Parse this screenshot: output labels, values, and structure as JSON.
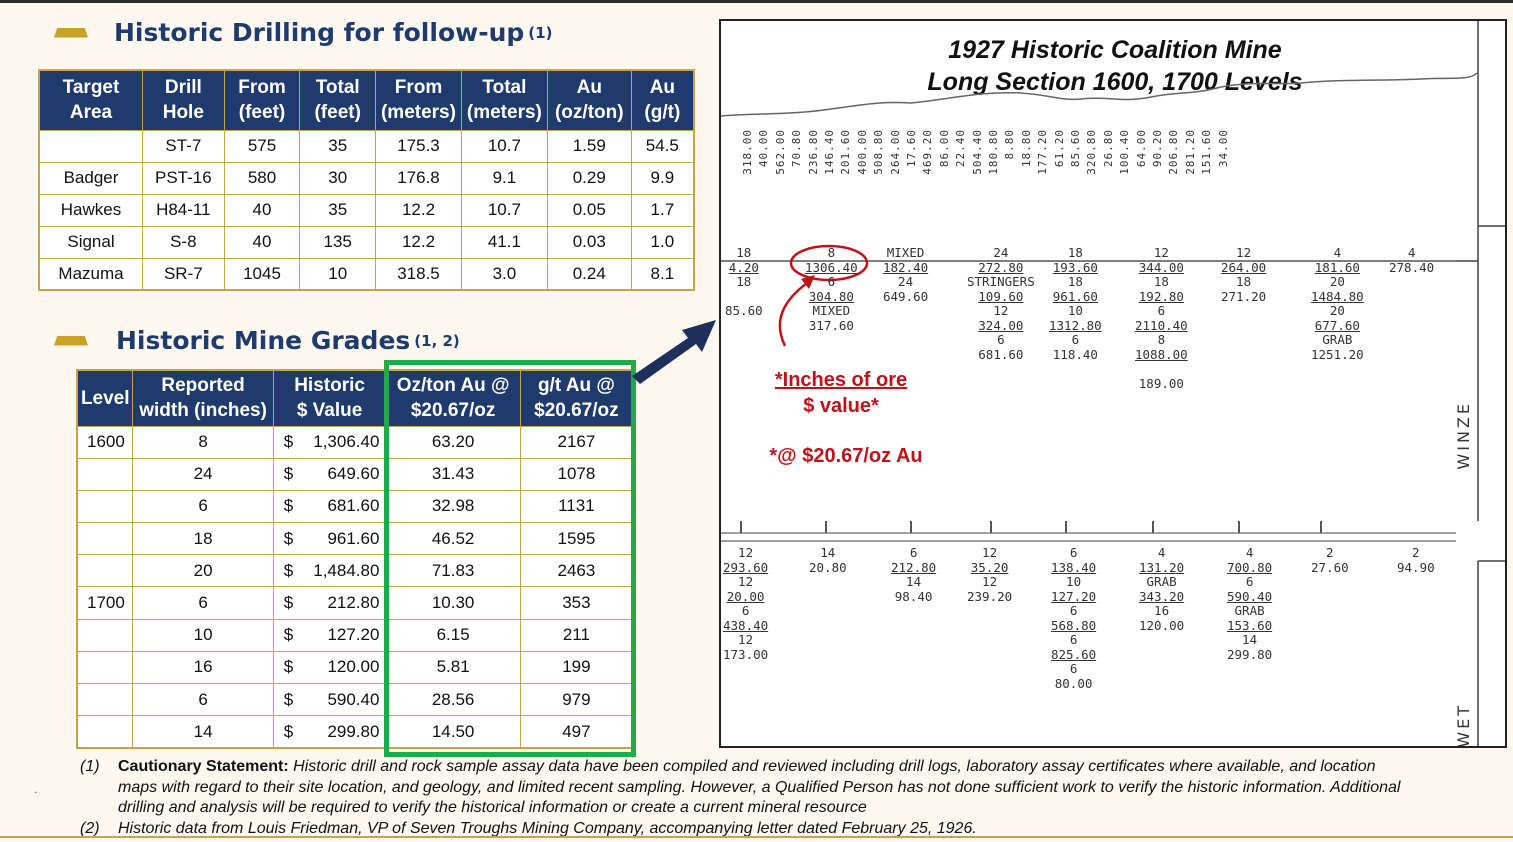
{
  "drilling": {
    "title": "Historic Drilling for follow-up",
    "title_note": "(1)",
    "headers": [
      [
        "Target",
        "Area"
      ],
      [
        "Drill",
        "Hole"
      ],
      [
        "From",
        "(feet)"
      ],
      [
        "Total",
        "(feet)"
      ],
      [
        "From",
        "(meters)"
      ],
      [
        "Total",
        "(meters)"
      ],
      [
        "Au",
        "(oz/ton)"
      ],
      [
        "Au",
        "(g/t)"
      ]
    ],
    "rows": [
      [
        "",
        "ST-7",
        "575",
        "35",
        "175.3",
        "10.7",
        "1.59",
        "54.5"
      ],
      [
        "Badger",
        "PST-16",
        "580",
        "30",
        "176.8",
        "9.1",
        "0.29",
        "9.9"
      ],
      [
        "Hawkes",
        "H84-11",
        "40",
        "35",
        "12.2",
        "10.7",
        "0.05",
        "1.7"
      ],
      [
        "Signal",
        "S-8",
        "40",
        "135",
        "12.2",
        "41.1",
        "0.03",
        "1.0"
      ],
      [
        "Mazuma",
        "SR-7",
        "1045",
        "10",
        "318.5",
        "3.0",
        "0.24",
        "8.1"
      ]
    ]
  },
  "grades": {
    "title": "Historic Mine Grades",
    "title_note": "(1, 2)",
    "headers": [
      [
        "Level",
        ""
      ],
      [
        "Reported",
        "width (inches)"
      ],
      [
        "Historic",
        "$ Value"
      ],
      [
        "Oz/ton Au @",
        "$20.67/oz"
      ],
      [
        "g/t Au @",
        "$20.67/oz"
      ]
    ],
    "currency": "$",
    "rows": [
      [
        "1600",
        "8",
        "1,306.40",
        "63.20",
        "2167"
      ],
      [
        "",
        "24",
        "649.60",
        "31.43",
        "1078"
      ],
      [
        "",
        "6",
        "681.60",
        "32.98",
        "1131"
      ],
      [
        "",
        "18",
        "961.60",
        "46.52",
        "1595"
      ],
      [
        "",
        "20",
        "1,484.80",
        "71.83",
        "2463"
      ],
      [
        "1700",
        "6",
        "212.80",
        "10.30",
        "353"
      ],
      [
        "",
        "10",
        "127.20",
        "6.15",
        "211"
      ],
      [
        "",
        "16",
        "120.00",
        "5.81",
        "199"
      ],
      [
        "",
        "6",
        "590.40",
        "28.56",
        "979"
      ],
      [
        "",
        "14",
        "299.80",
        "14.50",
        "497"
      ]
    ]
  },
  "long_section": {
    "title_line1": "1927 Historic Coalition Mine",
    "title_line2": "Long Section 1600, 1700 Levels",
    "annotation_line1": "*Inches of ore",
    "annotation_line2": "$ value*",
    "annotation_price": "*@ $20.67/oz Au",
    "winze_label": "WINZE",
    "wet_label": "WET",
    "top_values": [
      "318.00",
      "40.00",
      "562.00",
      "70.80",
      "236.80",
      "146.40",
      "201.60",
      "400.00",
      "508.80",
      "264.00",
      "17.60",
      "469.20",
      "86.00",
      "22.40",
      "504.40",
      "180.80",
      "8.80",
      "18.80",
      "177.20",
      "61.20",
      "85.60",
      "320.80",
      "26.80",
      "100.40",
      "64.00",
      "90.20",
      "206.80",
      "281.20",
      "151.60",
      "34.00"
    ],
    "upper_level": [
      {
        "lines": [
          "18",
          "4.20",
          "18",
          "",
          "85.60"
        ]
      },
      {
        "lines": [
          "8",
          "1306.40",
          "6",
          "304.80",
          "MIXED",
          "317.60"
        ]
      },
      {
        "lines": [
          "MIXED",
          "182.40",
          "24",
          "649.60"
        ]
      },
      {
        "lines": [
          "24",
          "272.80",
          "STRINGERS",
          "109.60",
          "12",
          "324.00",
          "6",
          "681.60"
        ]
      },
      {
        "lines": [
          "18",
          "193.60",
          "18",
          "961.60",
          "10",
          "1312.80",
          "6",
          "118.40"
        ]
      },
      {
        "lines": [
          "12",
          "344.00",
          "18",
          "192.80",
          "6",
          "2110.40",
          "8",
          "1088.00",
          "",
          "189.00"
        ]
      },
      {
        "lines": [
          "12",
          "264.00",
          "18",
          "271.20"
        ]
      },
      {
        "lines": [
          "4",
          "181.60",
          "20",
          "1484.80",
          "20",
          "677.60",
          "GRAB",
          "1251.20"
        ]
      },
      {
        "lines": [
          "4",
          "278.40"
        ]
      }
    ],
    "lower_level": [
      {
        "lines": [
          "12",
          "293.60",
          "12",
          "20.00",
          "6",
          "438.40",
          "12",
          "173.00"
        ]
      },
      {
        "lines": [
          "14",
          "20.80"
        ]
      },
      {
        "lines": [
          "6",
          "212.80",
          "14",
          "98.40"
        ]
      },
      {
        "lines": [
          "12",
          "35.20",
          "12",
          "239.20"
        ]
      },
      {
        "lines": [
          "6",
          "138.40",
          "10",
          "127.20",
          "6",
          "568.80",
          "6",
          "825.60",
          "6",
          "80.00"
        ]
      },
      {
        "lines": [
          "4",
          "131.20",
          "GRAB",
          "343.20",
          "16",
          "120.00"
        ]
      },
      {
        "lines": [
          "4",
          "700.80",
          "6",
          "590.40",
          "GRAB",
          "153.60",
          "14",
          "299.80"
        ]
      },
      {
        "lines": [
          "2",
          "27.60"
        ]
      },
      {
        "lines": [
          "2",
          "94.90"
        ]
      }
    ]
  },
  "footnotes": {
    "n1": "(1)",
    "n1_bold": "Cautionary Statement:",
    "n1_text": "Historic drill and rock sample assay data have been compiled and reviewed including drill logs, laboratory assay certificates where available, and location maps with regard to their site location, and geology, and limited recent sampling. However, a Qualified Person has not done sufficient work to verify the historic information. Additional drilling and analysis will be required to verify the historical information or create a current mineral resource",
    "n2": "(2)",
    "n2_text": "Historic data from Louis Friedman, VP of Seven Troughs Mining Company, accompanying letter dated February 25, 1926."
  }
}
